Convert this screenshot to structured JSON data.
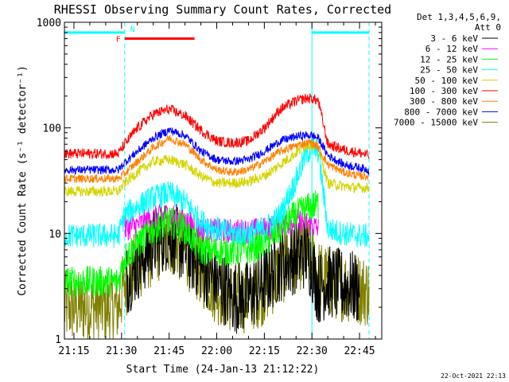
{
  "chart_data": {
    "type": "line",
    "title": "RHESSI Observing Summary Count Rates, Corrected",
    "xlabel": "Start Time (24-Jan-13 21:12:22)",
    "ylabel": "Corrected Count Rate (s⁻¹ detector⁻¹)",
    "y_scale": "log",
    "ylim": [
      1,
      1000
    ],
    "xlim_minutes": [
      "21:12",
      "22:52"
    ],
    "x_ticks": [
      "21:15",
      "21:30",
      "21:45",
      "22:00",
      "22:15",
      "22:30",
      "22:45"
    ],
    "y_ticks": [
      "1",
      "10",
      "100",
      "1000"
    ],
    "legend_header": [
      "Det 1,3,4,5,6,9,",
      "Att 0"
    ],
    "timestamp": "22-Oct-2021 22:13",
    "annotations": {
      "night_label": "N",
      "flare_label": "F",
      "night_intervals": [
        [
          "21:12",
          "21:31"
        ],
        [
          "22:30",
          "22:48"
        ]
      ],
      "flare_interval": [
        "21:31",
        "21:53"
      ]
    },
    "time_nodes": [
      "21:12",
      "21:20",
      "21:29",
      "21:31",
      "21:35",
      "21:40",
      "21:45",
      "21:50",
      "21:55",
      "22:00",
      "22:05",
      "22:10",
      "22:15",
      "22:20",
      "22:25",
      "22:28",
      "22:30",
      "22:32",
      "22:35",
      "22:40",
      "22:45",
      "22:48"
    ],
    "series": [
      {
        "name": "3 - 6 keV",
        "color": "#000000",
        "noise": 0.35,
        "values": [
          null,
          null,
          null,
          3.5,
          5,
          8,
          10,
          7,
          5,
          3.5,
          2.5,
          2.5,
          3.5,
          5,
          6,
          6.5,
          5,
          3,
          3.5,
          3.2,
          3,
          null
        ]
      },
      {
        "name": "6 - 12 keV",
        "color": "#ff00ff",
        "noise": 0.12,
        "values": [
          null,
          null,
          null,
          11,
          12,
          14,
          15,
          13,
          11,
          10.5,
          10.5,
          10.5,
          11,
          12,
          13,
          13,
          12,
          11,
          null,
          null,
          null,
          null
        ]
      },
      {
        "name": "12 - 25 keV",
        "color": "#00ff00",
        "noise": 0.15,
        "values": [
          3.5,
          3.5,
          3.5,
          6,
          8,
          11,
          13,
          11,
          7,
          6.8,
          6.8,
          7,
          8,
          11,
          15,
          17,
          18,
          19,
          null,
          null,
          null,
          null
        ]
      },
      {
        "name": "25 - 50 keV",
        "color": "#00ffff",
        "noise": 0.12,
        "values": [
          9.5,
          9.5,
          9.5,
          15,
          18,
          22,
          24,
          20,
          13,
          11,
          10,
          10,
          11,
          15,
          32,
          55,
          65,
          60,
          11,
          10,
          9.5,
          9.5
        ]
      },
      {
        "name": "50 - 100 keV",
        "color": "#d4d400",
        "noise": 0.05,
        "values": [
          25,
          25,
          25,
          30,
          38,
          48,
          50,
          45,
          35,
          30,
          30,
          31,
          35,
          45,
          58,
          68,
          70,
          65,
          30,
          28,
          27,
          27
        ]
      },
      {
        "name": "100 - 300 keV",
        "color": "#ff0000",
        "noise": 0.05,
        "values": [
          57,
          57,
          57,
          70,
          100,
          135,
          150,
          130,
          95,
          75,
          72,
          75,
          100,
          150,
          180,
          190,
          190,
          180,
          70,
          62,
          58,
          55
        ]
      },
      {
        "name": "300 - 800 keV",
        "color": "#ff8000",
        "noise": 0.04,
        "values": [
          33,
          33,
          33,
          37,
          48,
          65,
          80,
          70,
          50,
          40,
          38,
          40,
          48,
          60,
          68,
          72,
          72,
          65,
          45,
          38,
          35,
          35
        ]
      },
      {
        "name": "800 - 7000 keV",
        "color": "#0000ff",
        "noise": 0.04,
        "values": [
          40,
          40,
          40,
          47,
          60,
          80,
          95,
          85,
          60,
          50,
          48,
          50,
          60,
          75,
          83,
          85,
          85,
          80,
          55,
          45,
          42,
          40
        ]
      },
      {
        "name": "7000 - 15000 keV",
        "color": "#808000",
        "noise": 0.35,
        "values": [
          2,
          2,
          2,
          3.5,
          5,
          7,
          9,
          7,
          4.5,
          3,
          2.5,
          2.5,
          3,
          4.5,
          6,
          7,
          6,
          4,
          3.5,
          3.2,
          3,
          2.8
        ]
      }
    ]
  }
}
